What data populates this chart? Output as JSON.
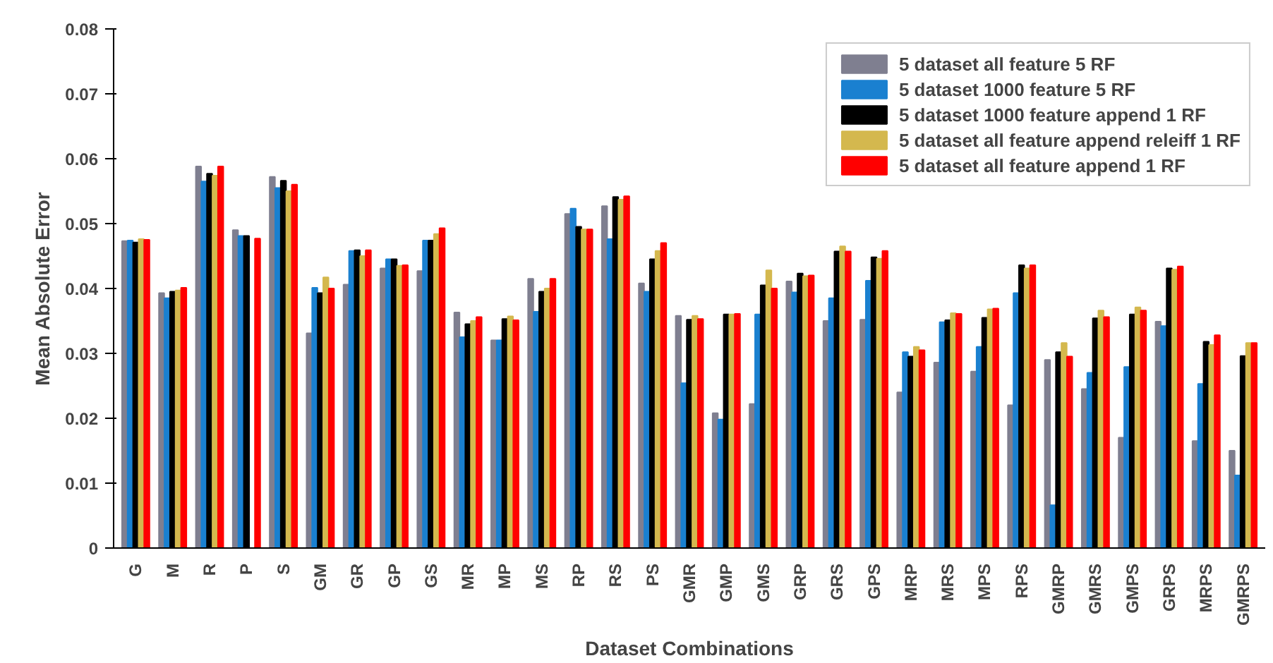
{
  "chart_data": {
    "type": "bar",
    "xlabel": "Dataset Combinations",
    "ylabel": "Mean Absolute Error",
    "categories": [
      "G",
      "M",
      "R",
      "P",
      "S",
      "GM",
      "GR",
      "GP",
      "GS",
      "MR",
      "MP",
      "MS",
      "RP",
      "RS",
      "PS",
      "GMR",
      "GMP",
      "GMS",
      "GRP",
      "GRS",
      "GPS",
      "MRP",
      "MRS",
      "MPS",
      "RPS",
      "GMRP",
      "GMRS",
      "GMPS",
      "GRPS",
      "MRPS",
      "GMRPS"
    ],
    "series": [
      {
        "name": "5 dataset all feature 5 RF",
        "color": "#7f7f90",
        "values": [
          0.0473,
          0.0393,
          0.0588,
          0.049,
          0.0572,
          0.0331,
          0.0406,
          0.0431,
          0.0427,
          0.0363,
          0.032,
          0.0415,
          0.0515,
          0.0527,
          0.0408,
          0.0358,
          0.0208,
          0.0222,
          0.0411,
          0.035,
          0.0352,
          0.024,
          0.0286,
          0.0272,
          0.022,
          0.029,
          0.0245,
          0.017,
          0.0349,
          0.0165,
          0.015
        ]
      },
      {
        "name": "5 dataset 1000 feature 5 RF",
        "color": "#1a80d0",
        "values": [
          0.0474,
          0.0385,
          0.0565,
          0.0481,
          0.0555,
          0.0401,
          0.0458,
          0.0445,
          0.0474,
          0.0325,
          0.032,
          0.0364,
          0.0523,
          0.0476,
          0.0395,
          0.0254,
          0.0198,
          0.036,
          0.0394,
          0.0385,
          0.0412,
          0.0302,
          0.0348,
          0.031,
          0.0393,
          0.0066,
          0.027,
          0.0279,
          0.0342,
          0.0253,
          0.0112
        ]
      },
      {
        "name": "5 dataset 1000 feature append 1 RF",
        "color": "#000000",
        "values": [
          0.0471,
          0.0395,
          0.0577,
          0.0481,
          0.0566,
          0.0393,
          0.0459,
          0.0445,
          0.0474,
          0.0345,
          0.0353,
          0.0395,
          0.0495,
          0.0541,
          0.0445,
          0.0352,
          0.036,
          0.0405,
          0.0423,
          0.0457,
          0.0448,
          0.0295,
          0.0351,
          0.0355,
          0.0436,
          0.0302,
          0.0354,
          0.036,
          0.0431,
          0.0318,
          0.0296
        ]
      },
      {
        "name": "5 dataset all feature append releiff 1 RF",
        "color": "#d4b84e",
        "values": [
          0.0476,
          0.0397,
          0.0574,
          null,
          0.055,
          0.0417,
          0.045,
          0.0435,
          0.0484,
          0.035,
          0.0357,
          0.04,
          0.0491,
          0.0537,
          0.0458,
          0.0358,
          0.036,
          0.0428,
          0.0419,
          0.0465,
          0.0446,
          0.031,
          0.0362,
          0.0368,
          0.0431,
          0.0316,
          0.0366,
          0.0371,
          0.0429,
          0.0313,
          0.0316
        ]
      },
      {
        "name": "5 dataset all feature append 1 RF",
        "color": "#ff0000",
        "values": [
          0.0475,
          0.0401,
          0.0588,
          0.0477,
          0.056,
          0.04,
          0.0459,
          0.0436,
          0.0493,
          0.0356,
          0.0351,
          0.0415,
          0.0491,
          0.0542,
          0.047,
          0.0353,
          0.0361,
          0.04,
          0.042,
          0.0457,
          0.0458,
          0.0305,
          0.0361,
          0.0369,
          0.0436,
          0.0295,
          0.0356,
          0.0366,
          0.0434,
          0.0328,
          0.0316
        ]
      }
    ],
    "ylim": [
      0,
      0.08
    ],
    "yticks": [
      0,
      0.01,
      0.02,
      0.03,
      0.04,
      0.05,
      0.06,
      0.07,
      0.08
    ],
    "grid": false,
    "legend": "top right"
  }
}
